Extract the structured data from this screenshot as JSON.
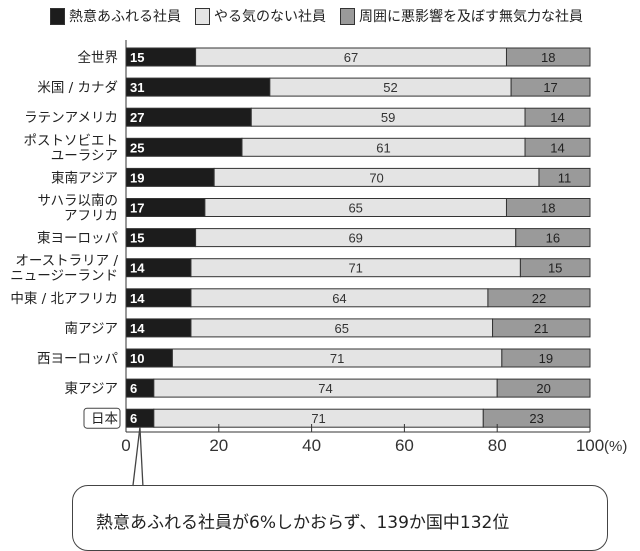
{
  "legend": [
    {
      "label": "熱意あふれる社員",
      "color": "#1c1c1c"
    },
    {
      "label": "やる気のない社員",
      "color": "#e4e4e4"
    },
    {
      "label": "周囲に悪影響を及ぼす無気力な社員",
      "color": "#9a9a9a"
    }
  ],
  "callout": "熱意あふれる社員が6%しかおらず、139か国中132位",
  "chart_data": {
    "type": "bar",
    "orientation": "horizontal-stacked",
    "categories": [
      "全世界",
      "米国 / カナダ",
      "ラテンアメリカ",
      "ポストソビエト\nユーラシア",
      "東南アジア",
      "サハラ以南の\nアフリカ",
      "東ヨーロッパ",
      "オーストラリア /\nニュージーランド",
      "中東 / 北アフリカ",
      "南アジア",
      "西ヨーロッパ",
      "東アジア",
      "日本"
    ],
    "highlighted_category": "日本",
    "series": [
      {
        "name": "熱意あふれる社員",
        "values": [
          15,
          31,
          27,
          25,
          19,
          17,
          15,
          14,
          14,
          14,
          10,
          6,
          6
        ]
      },
      {
        "name": "やる気のない社員",
        "values": [
          67,
          52,
          59,
          61,
          70,
          65,
          69,
          71,
          64,
          65,
          71,
          74,
          71
        ]
      },
      {
        "name": "周囲に悪影響を及ぼす無気力な社員",
        "values": [
          18,
          17,
          14,
          14,
          11,
          18,
          16,
          15,
          22,
          21,
          19,
          20,
          23
        ]
      }
    ],
    "xlim": [
      0,
      100
    ],
    "xticks": [
      "0",
      "20",
      "40",
      "60",
      "80",
      "100"
    ],
    "xunit": "(%)",
    "legend_position": "top",
    "grid": false
  }
}
